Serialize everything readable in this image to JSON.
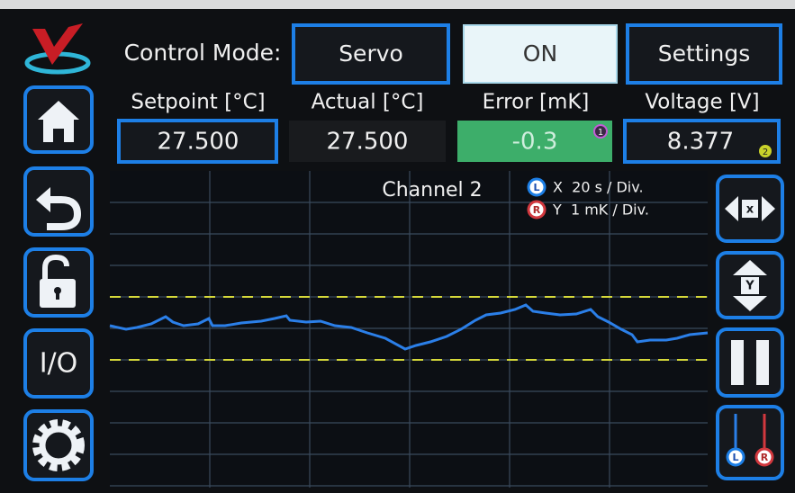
{
  "header": {
    "mode_label": "Control Mode:",
    "mode_button": "Servo",
    "on_button": "ON",
    "settings_button": "Settings"
  },
  "readouts": [
    {
      "label": "Setpoint [°C]",
      "value": "27.500"
    },
    {
      "label": "Actual [°C]",
      "value": "27.500"
    },
    {
      "label": "Error [mK]",
      "value": "-0.3",
      "badge": "1"
    },
    {
      "label": "Voltage [V]",
      "value": "8.377",
      "badge": "2"
    }
  ],
  "plot": {
    "title": "Channel 2",
    "x_marker": "L",
    "x_scale": "X  20 s / Div.",
    "y_marker": "R",
    "y_scale": "Y  1 mK / Div."
  },
  "sidebar": {
    "io_button": "I/O"
  },
  "right_buttons": {
    "x_zoom": "x",
    "y_zoom": "Y",
    "left_marker": "L",
    "right_marker": "R"
  }
}
